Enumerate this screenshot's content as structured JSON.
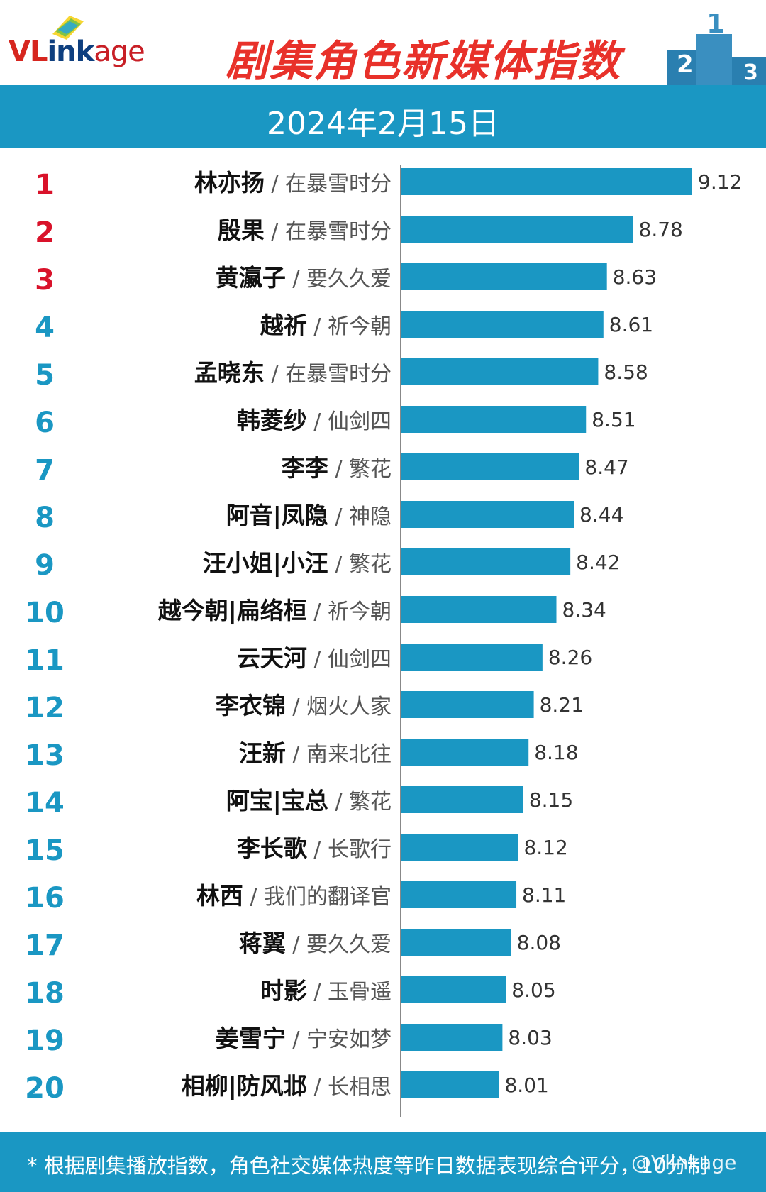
{
  "brand": {
    "logo_text_1": "VL",
    "logo_text_2": "ink",
    "logo_text_3": "age"
  },
  "header": {
    "title": "剧集角色新媒体指数",
    "podium_labels": [
      "2",
      "1",
      "3"
    ]
  },
  "date": "2024年2月15日",
  "footer": {
    "note": "* 根据剧集播放指数，角色社交媒体热度等昨日数据表现综合评分，10分制",
    "watermark": "@Vlinkage"
  },
  "colors": {
    "accent_blue": "#1a97c3",
    "bar_blue": "#1a97c3",
    "title_red": "#e8312a",
    "top3_rank_red": "#d9122a",
    "rank_blue": "#1a97c3"
  },
  "chart_data": {
    "type": "bar",
    "orientation": "horizontal",
    "xlim": [
      0,
      10
    ],
    "ranks": [
      "1",
      "2",
      "3",
      "4",
      "5",
      "6",
      "7",
      "8",
      "9",
      "10",
      "11",
      "12",
      "13",
      "14",
      "15",
      "16",
      "17",
      "18",
      "19",
      "20"
    ],
    "characters": [
      "林亦扬",
      "殷果",
      "黄瀛子",
      "越祈",
      "孟晓东",
      "韩菱纱",
      "李李",
      "阿音|凤隐",
      "汪小姐|小汪",
      "越今朝|扁络桓",
      "云天河",
      "李衣锦",
      "汪新",
      "阿宝|宝总",
      "李长歌",
      "林西",
      "蒋翼",
      "时影",
      "姜雪宁",
      "相柳|防风邶"
    ],
    "dramas": [
      "在暴雪时分",
      "在暴雪时分",
      "要久久爱",
      "祈今朝",
      "在暴雪时分",
      "仙剑四",
      "繁花",
      "神隐",
      "繁花",
      "祈今朝",
      "仙剑四",
      "烟火人家",
      "南来北往",
      "繁花",
      "长歌行",
      "我们的翻译官",
      "要久久爱",
      "玉骨遥",
      "宁安如梦",
      "长相思"
    ],
    "separator": "/",
    "values": [
      9.12,
      8.78,
      8.63,
      8.61,
      8.58,
      8.51,
      8.47,
      8.44,
      8.42,
      8.34,
      8.26,
      8.21,
      8.18,
      8.15,
      8.12,
      8.11,
      8.08,
      8.05,
      8.03,
      8.01
    ],
    "value_labels": [
      "9.12",
      "8.78",
      "8.63",
      "8.61",
      "8.58",
      "8.51",
      "8.47",
      "8.44",
      "8.42",
      "8.34",
      "8.26",
      "8.21",
      "8.18",
      "8.15",
      "8.12",
      "8.11",
      "8.08",
      "8.05",
      "8.03",
      "8.01"
    ]
  }
}
